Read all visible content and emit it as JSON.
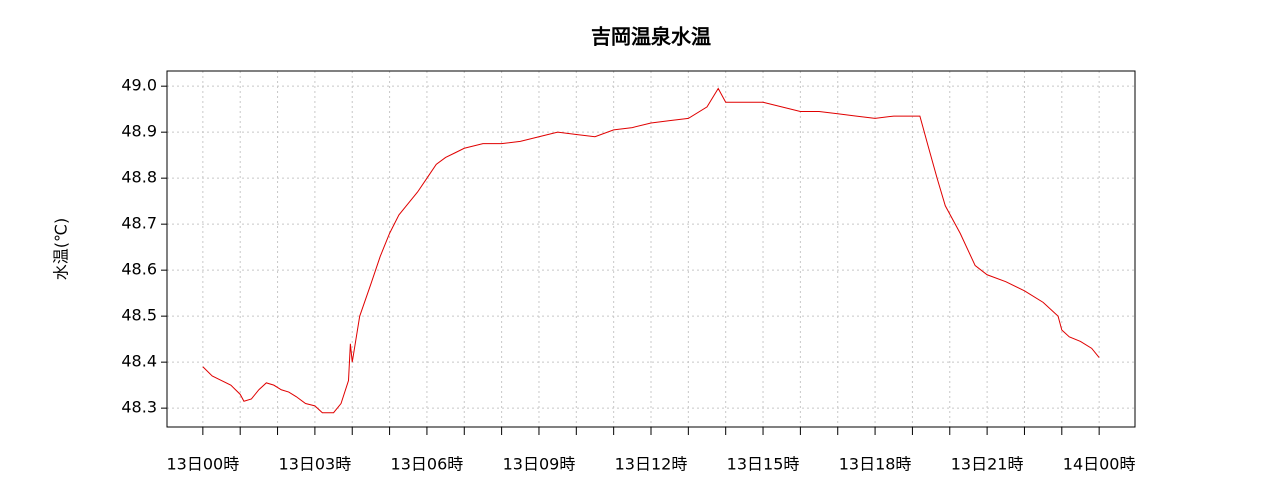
{
  "chart_data": {
    "type": "line",
    "title": "吉岡温泉水温",
    "y_label": "水温(℃)",
    "x": [
      0,
      0.25,
      0.5,
      0.75,
      1.0,
      1.1,
      1.3,
      1.5,
      1.7,
      1.9,
      2.1,
      2.3,
      2.5,
      2.75,
      3.0,
      3.2,
      3.5,
      3.7,
      3.9,
      3.95,
      4.0,
      4.2,
      4.5,
      4.75,
      5.0,
      5.25,
      5.5,
      5.75,
      6.0,
      6.25,
      6.5,
      6.75,
      7.0,
      7.5,
      8.0,
      8.5,
      9.0,
      9.5,
      10.0,
      10.5,
      11.0,
      11.5,
      12.0,
      12.5,
      13.0,
      13.5,
      13.8,
      14.0,
      14.5,
      15.0,
      15.5,
      16.0,
      16.5,
      17.0,
      17.5,
      18.0,
      18.5,
      19.0,
      19.2,
      19.42,
      19.66,
      19.88,
      20.28,
      20.68,
      21.0,
      21.5,
      22.0,
      22.5,
      22.9,
      23.0,
      23.2,
      23.5,
      23.8,
      24.0
    ],
    "series": [
      {
        "name": "水温",
        "color": "#e00000",
        "values": [
          48.39,
          48.37,
          48.36,
          48.35,
          48.33,
          48.315,
          48.32,
          48.34,
          48.355,
          48.35,
          48.34,
          48.335,
          48.325,
          48.31,
          48.305,
          48.29,
          48.29,
          48.31,
          48.36,
          48.44,
          48.4,
          48.5,
          48.57,
          48.63,
          48.68,
          48.72,
          48.745,
          48.77,
          48.8,
          48.83,
          48.845,
          48.855,
          48.865,
          48.875,
          48.875,
          48.88,
          48.89,
          48.9,
          48.895,
          48.89,
          48.905,
          48.91,
          48.92,
          48.925,
          48.93,
          48.955,
          48.995,
          48.965,
          48.965,
          48.965,
          48.955,
          48.945,
          48.945,
          48.94,
          48.935,
          48.93,
          48.935,
          48.935,
          48.935,
          48.87,
          48.8,
          48.74,
          48.68,
          48.61,
          48.59,
          48.575,
          48.555,
          48.53,
          48.5,
          48.47,
          48.455,
          48.445,
          48.43,
          48.41
        ]
      }
    ],
    "xlim": [
      -0.96,
      24.96
    ],
    "ylim": [
      48.259,
      49.033
    ],
    "xticks": [
      {
        "value": 0,
        "label": "13日00時"
      },
      {
        "value": 3,
        "label": "13日03時"
      },
      {
        "value": 6,
        "label": "13日06時"
      },
      {
        "value": 9,
        "label": "13日09時"
      },
      {
        "value": 12,
        "label": "13日12時"
      },
      {
        "value": 15,
        "label": "13日15時"
      },
      {
        "value": 18,
        "label": "13日18時"
      },
      {
        "value": 21,
        "label": "13日21時"
      },
      {
        "value": 24,
        "label": "14日00時"
      }
    ],
    "xminorticks": [
      1,
      2,
      4,
      5,
      7,
      8,
      10,
      11,
      13,
      14,
      16,
      17,
      19,
      20,
      22,
      23
    ],
    "yticks": [
      48.3,
      48.4,
      48.5,
      48.6,
      48.7,
      48.8,
      48.9,
      {
        "value": 49,
        "label": "49.0"
      }
    ],
    "grid": true
  }
}
